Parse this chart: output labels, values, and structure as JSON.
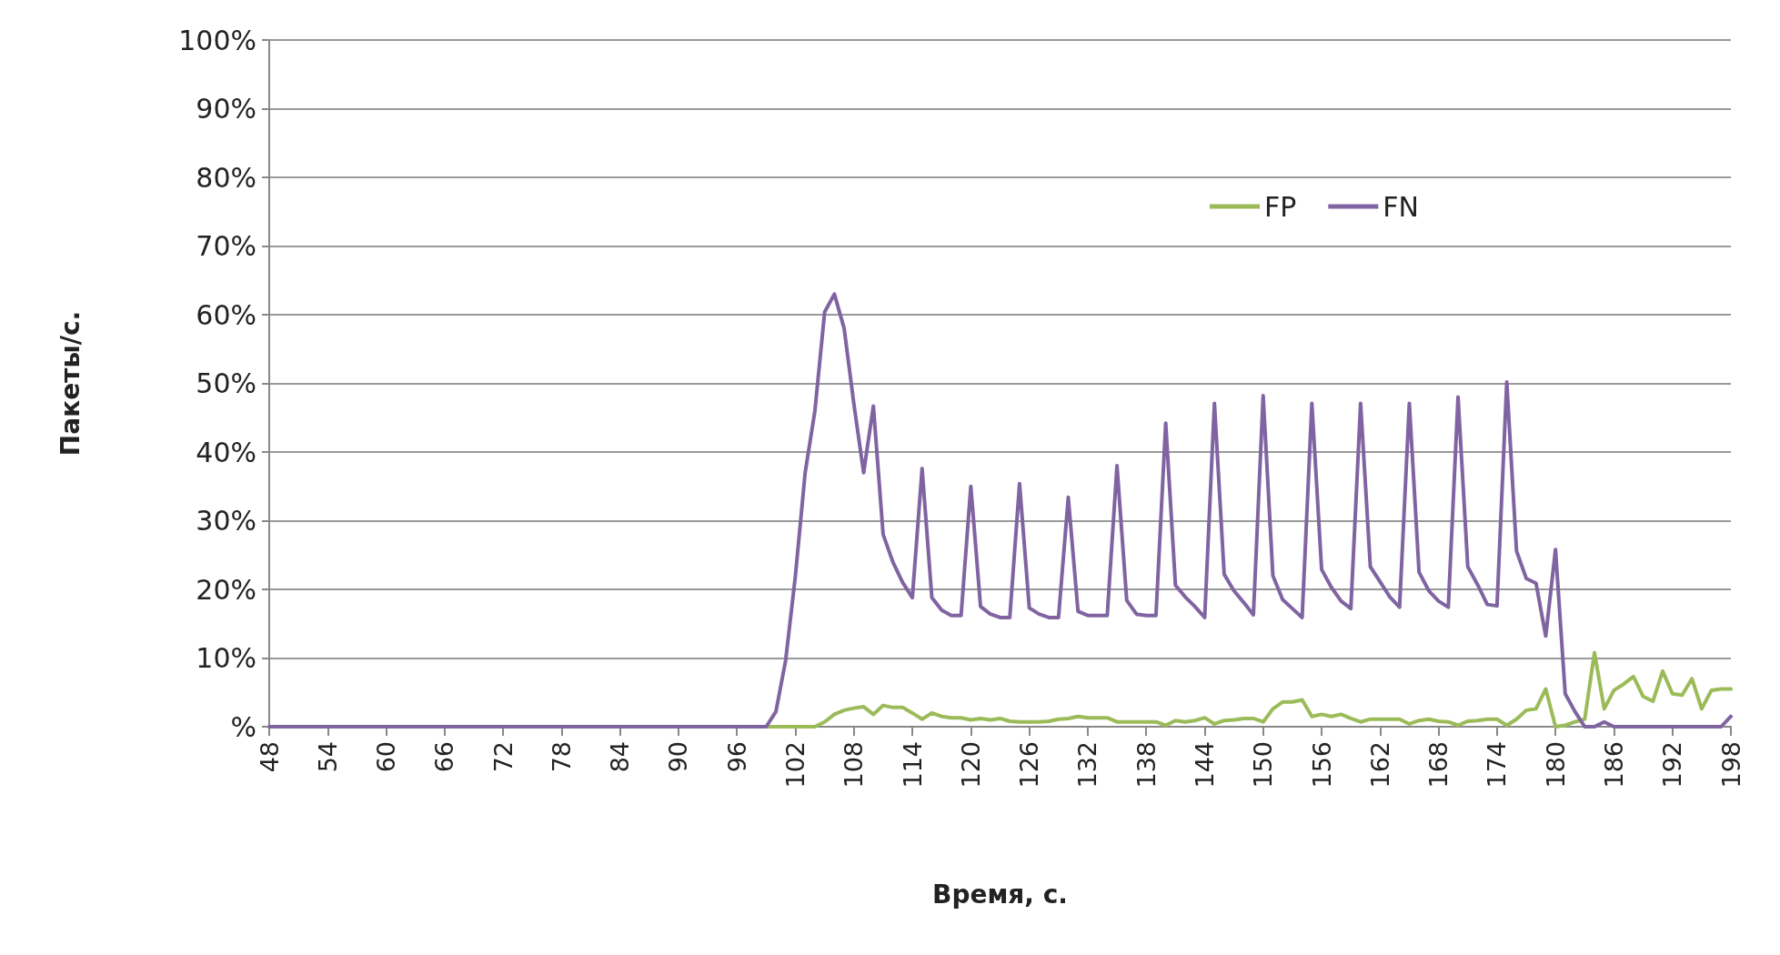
{
  "chart_data": {
    "type": "line",
    "xlabel": "Время, с.",
    "ylabel": "Пакеты/с.",
    "xlim": [
      48,
      198
    ],
    "xticks": [
      48,
      54,
      60,
      66,
      72,
      78,
      84,
      90,
      96,
      102,
      108,
      114,
      120,
      126,
      132,
      138,
      144,
      150,
      156,
      162,
      168,
      174,
      180,
      186,
      192,
      198
    ],
    "ylim": [
      0,
      100
    ],
    "yticks": [
      {
        "value": 0,
        "label": "%"
      },
      {
        "value": 10,
        "label": "10%"
      },
      {
        "value": 20,
        "label": "20%"
      },
      {
        "value": 30,
        "label": "30%"
      },
      {
        "value": 40,
        "label": "40%"
      },
      {
        "value": 50,
        "label": "50%"
      },
      {
        "value": 60,
        "label": "60%"
      },
      {
        "value": 70,
        "label": "70%"
      },
      {
        "value": 80,
        "label": "80%"
      },
      {
        "value": 90,
        "label": "90%"
      },
      {
        "value": 100,
        "label": "100%"
      }
    ],
    "grid": "y",
    "legend": "top right",
    "marker": "none",
    "line_style": "solid",
    "series": [
      {
        "name": "FP",
        "color": "#9bbb59",
        "x": [
          48,
          104,
          105,
          106,
          107,
          108,
          109,
          110,
          111,
          112,
          113,
          114,
          115,
          116,
          117,
          118,
          119,
          120,
          121,
          122,
          123,
          124,
          125,
          126,
          127,
          128,
          129,
          130,
          131,
          132,
          133,
          134,
          135,
          136,
          137,
          138,
          139,
          140,
          141,
          142,
          143,
          144,
          145,
          146,
          147,
          148,
          149,
          150,
          151,
          152,
          153,
          154,
          155,
          156,
          157,
          158,
          159,
          160,
          161,
          162,
          163,
          164,
          165,
          166,
          167,
          168,
          169,
          170,
          171,
          172,
          173,
          174,
          175,
          176,
          177,
          178,
          179,
          180,
          181,
          182,
          183,
          184,
          185,
          186,
          187,
          188,
          189,
          190,
          191,
          192,
          193,
          194,
          195,
          196,
          197,
          198
        ],
        "values": [
          0,
          0,
          0.7,
          1.8,
          2.4,
          2.7,
          2.9,
          1.8,
          3.1,
          2.8,
          2.8,
          2.0,
          1.1,
          2.0,
          1.5,
          1.3,
          1.3,
          1.0,
          1.2,
          1.0,
          1.2,
          0.8,
          0.7,
          0.7,
          0.7,
          0.8,
          1.1,
          1.2,
          1.5,
          1.3,
          1.3,
          1.3,
          0.7,
          0.7,
          0.7,
          0.7,
          0.7,
          0.2,
          0.9,
          0.7,
          0.9,
          1.3,
          0.4,
          0.9,
          1.0,
          1.2,
          1.2,
          0.7,
          2.6,
          3.6,
          3.6,
          3.9,
          1.5,
          1.8,
          1.5,
          1.8,
          1.2,
          0.7,
          1.1,
          1.1,
          1.1,
          1.1,
          0.4,
          0.9,
          1.1,
          0.8,
          0.7,
          0.2,
          0.8,
          0.9,
          1.1,
          1.1,
          0.2,
          1.1,
          2.4,
          2.6,
          5.5,
          0,
          0.2,
          0.7,
          1.1,
          10.8,
          2.6,
          5.3,
          6.2,
          7.3,
          4.4,
          3.7,
          8.1,
          4.8,
          4.6,
          7.0,
          2.6,
          5.3,
          5.5,
          5.5
        ]
      },
      {
        "name": "FN",
        "color": "#8064a2",
        "x": [
          48,
          98,
          99,
          100,
          101,
          102,
          103,
          104,
          105,
          106,
          107,
          108,
          109,
          110,
          111,
          112,
          113,
          114,
          115,
          116,
          117,
          118,
          119,
          120,
          121,
          122,
          123,
          124,
          125,
          126,
          127,
          128,
          129,
          130,
          131,
          132,
          133,
          134,
          135,
          136,
          137,
          138,
          139,
          140,
          141,
          142,
          143,
          144,
          145,
          146,
          147,
          148,
          149,
          150,
          151,
          152,
          153,
          154,
          155,
          156,
          157,
          158,
          159,
          160,
          161,
          162,
          163,
          164,
          165,
          166,
          167,
          168,
          169,
          170,
          171,
          172,
          173,
          174,
          175,
          176,
          177,
          178,
          179,
          180,
          181,
          182,
          183,
          184,
          185,
          186,
          187,
          188,
          189,
          190,
          191,
          192,
          193,
          194,
          195,
          196,
          197,
          198
        ],
        "values": [
          0,
          0,
          0,
          2.2,
          9.7,
          22,
          37,
          46,
          60.4,
          63,
          58,
          47,
          37,
          46.7,
          28,
          24,
          21,
          18.8,
          37.6,
          18.8,
          17,
          16.2,
          16.2,
          35,
          17.5,
          16.4,
          15.9,
          15.9,
          35.4,
          17.3,
          16.4,
          15.9,
          15.9,
          33.4,
          16.8,
          16.2,
          16.2,
          16.2,
          38,
          18.4,
          16.4,
          16.2,
          16.2,
          44.2,
          20.6,
          18.9,
          17.5,
          15.9,
          47.1,
          22.2,
          19.8,
          18.1,
          16.3,
          48.2,
          22,
          18.5,
          17.2,
          15.9,
          47.1,
          22.9,
          20.3,
          18.3,
          17.2,
          47.1,
          23.3,
          21.1,
          18.9,
          17.4,
          47.1,
          22.5,
          19.8,
          18.3,
          17.4,
          48,
          23.3,
          20.7,
          17.8,
          17.6,
          50.2,
          25.6,
          21.6,
          20.9,
          13.2,
          25.8,
          4.8,
          2.2,
          0,
          0,
          0.7,
          0,
          0,
          0,
          0,
          0,
          0,
          0,
          0,
          0,
          0,
          0,
          0,
          1.5
        ]
      }
    ]
  }
}
